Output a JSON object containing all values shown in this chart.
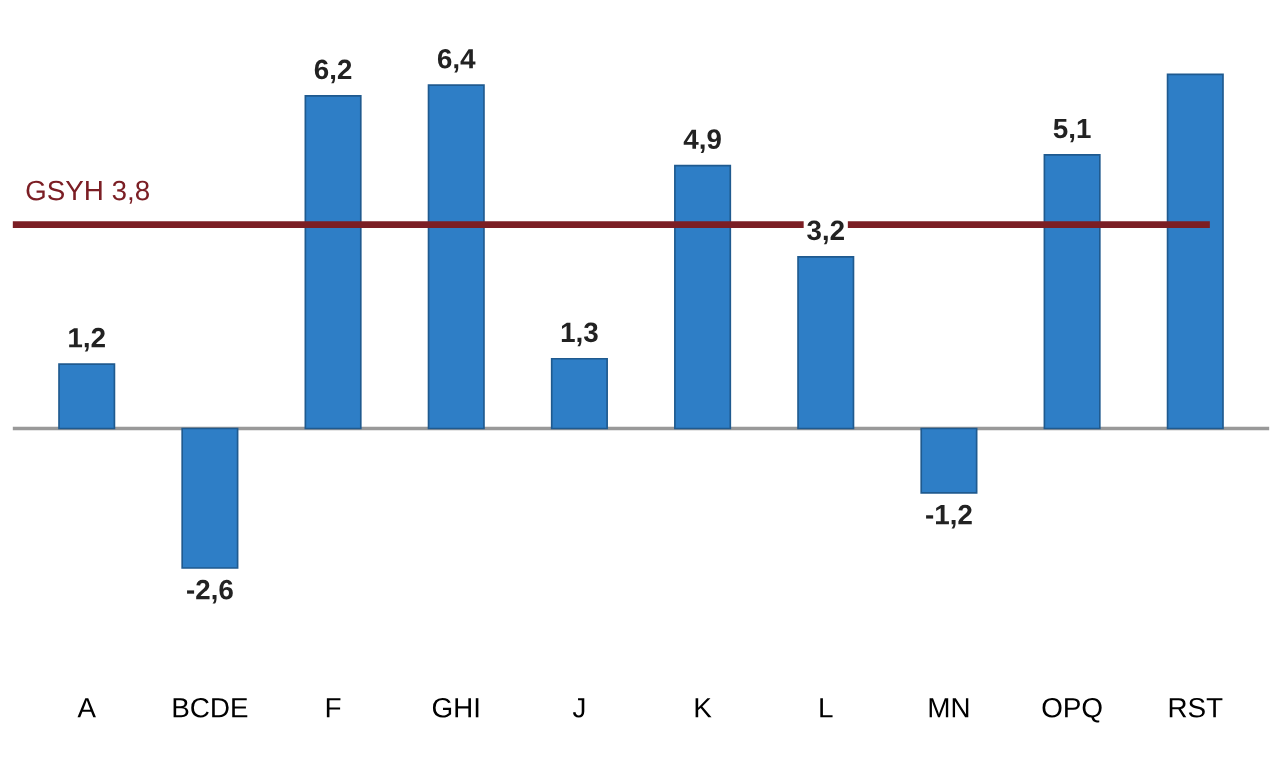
{
  "chart_data": {
    "type": "bar",
    "categories": [
      "A",
      "BCDE",
      "F",
      "GHI",
      "J",
      "K",
      "L",
      "MN",
      "OPQ",
      "RST"
    ],
    "values": [
      1.2,
      -2.6,
      6.2,
      6.4,
      1.3,
      4.9,
      3.2,
      -1.2,
      5.1,
      6.6
    ],
    "value_labels": [
      "1,2",
      "-2,6",
      "6,2",
      "6,4",
      "1,3",
      "4,9",
      "3,2",
      "-1,2",
      "5,1",
      null
    ],
    "color": "#2e7ec6",
    "ref_lines": [
      {
        "axis": "y",
        "value": 3.8,
        "label": "GSYH 3,8",
        "color": "#7b1e24"
      }
    ],
    "grid": false,
    "legend": false
  }
}
